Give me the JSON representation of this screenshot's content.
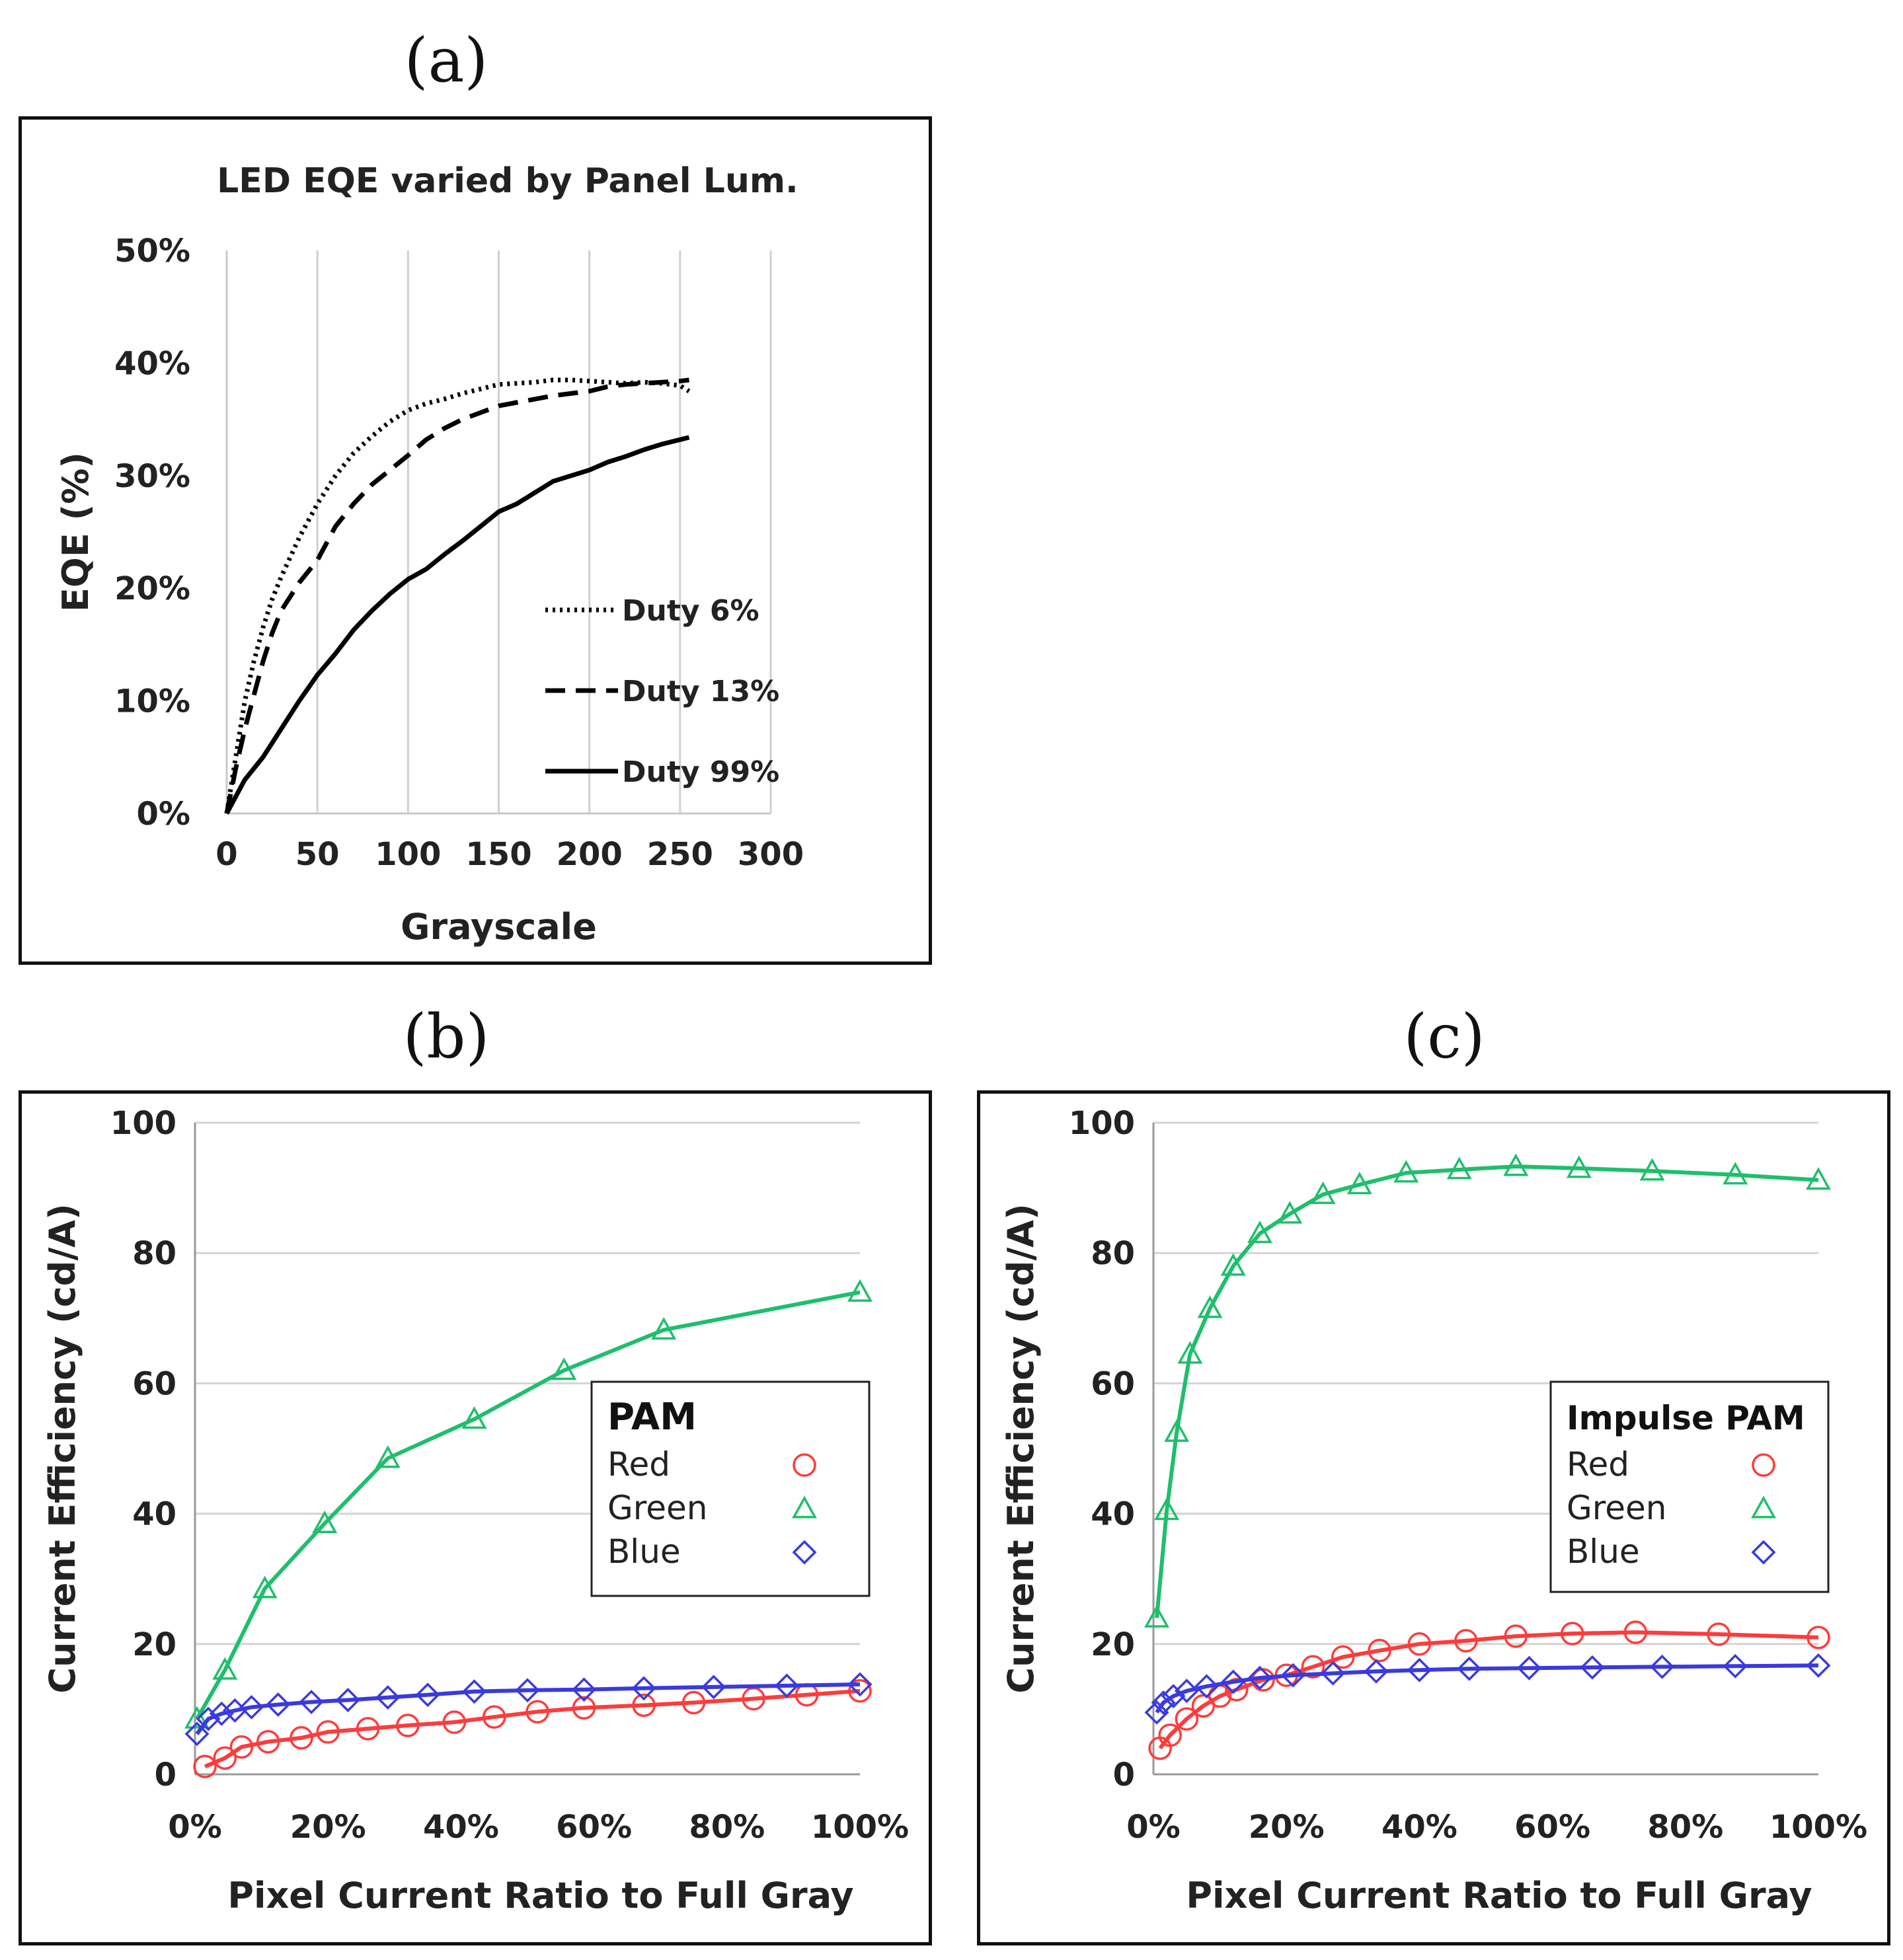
{
  "panels": {
    "a": "(a)",
    "b": "(b)",
    "c": "(c)"
  },
  "chart_data": [
    {
      "id": "a",
      "type": "line",
      "title": "LED EQE varied by Panel Lum.",
      "xlabel": "Grayscale",
      "ylabel": "EQE (%)",
      "xlim": [
        0,
        300
      ],
      "ylim": [
        0,
        50
      ],
      "xticks": [
        "0",
        "50",
        "100",
        "150",
        "200",
        "250",
        "300"
      ],
      "yticks": [
        "0%",
        "10%",
        "20%",
        "30%",
        "40%",
        "50%"
      ],
      "grid": "vertical",
      "legend_position": "bottom-right",
      "series": [
        {
          "name": "Duty 6%",
          "style": "dotted",
          "x": [
            0,
            5,
            10,
            15,
            20,
            25,
            30,
            40,
            50,
            60,
            70,
            80,
            90,
            100,
            110,
            120,
            130,
            140,
            150,
            160,
            170,
            180,
            190,
            200,
            210,
            220,
            230,
            240,
            250,
            255
          ],
          "y": [
            0,
            5,
            10,
            13.5,
            16.5,
            19,
            21,
            24.5,
            27.5,
            30,
            32,
            33.5,
            34.8,
            35.8,
            36.4,
            36.8,
            37.3,
            37.7,
            38.1,
            38.2,
            38.3,
            38.5,
            38.5,
            38.4,
            38.3,
            38.2,
            38.3,
            38.2,
            38.0,
            37.5
          ]
        },
        {
          "name": "Duty 13%",
          "style": "dashed",
          "x": [
            0,
            5,
            10,
            15,
            20,
            25,
            30,
            40,
            50,
            60,
            70,
            80,
            90,
            100,
            110,
            120,
            130,
            140,
            150,
            160,
            170,
            180,
            190,
            200,
            210,
            220,
            230,
            240,
            250,
            255
          ],
          "y": [
            0,
            4,
            7.5,
            10.5,
            13.5,
            16,
            18,
            20.5,
            22.5,
            25.5,
            27.5,
            29.2,
            30.5,
            31.8,
            33.2,
            34.2,
            35,
            35.6,
            36.2,
            36.5,
            36.8,
            37.1,
            37.3,
            37.5,
            37.9,
            38.1,
            38.2,
            38.3,
            38.4,
            38.5
          ]
        },
        {
          "name": "Duty 99%",
          "style": "solid",
          "x": [
            0,
            5,
            10,
            20,
            30,
            40,
            50,
            60,
            70,
            80,
            90,
            100,
            110,
            120,
            130,
            140,
            150,
            160,
            170,
            180,
            190,
            200,
            210,
            220,
            230,
            240,
            250,
            255
          ],
          "y": [
            0,
            1.5,
            3,
            5,
            7.5,
            10,
            12.3,
            14.2,
            16.3,
            18,
            19.5,
            20.8,
            21.7,
            23,
            24.2,
            25.5,
            26.8,
            27.5,
            28.5,
            29.5,
            30,
            30.5,
            31.2,
            31.7,
            32.3,
            32.8,
            33.2,
            33.4
          ]
        }
      ]
    },
    {
      "id": "b",
      "type": "line",
      "xlabel": "Pixel Current Ratio to Full Gray",
      "ylabel": "Current Efficiency (cd/A)",
      "xlim": [
        0,
        100
      ],
      "ylim": [
        0,
        100
      ],
      "xticks": [
        "0%",
        "20%",
        "40%",
        "60%",
        "80%",
        "100%"
      ],
      "yticks": [
        "0",
        "20",
        "40",
        "60",
        "80",
        "100"
      ],
      "grid": "horizontal",
      "legend_title": "PAM",
      "legend_position": "right",
      "series": [
        {
          "name": "Red",
          "color": "#ff3b3b",
          "marker": "circle",
          "x": [
            1.5,
            4.5,
            7,
            11,
            16,
            20,
            26,
            32,
            39,
            45,
            51.5,
            58.5,
            67.5,
            75,
            84,
            92,
            100
          ],
          "y": [
            1.2,
            2.5,
            4.2,
            5,
            5.6,
            6.5,
            7,
            7.5,
            8,
            8.8,
            9.6,
            10.2,
            10.6,
            11,
            11.6,
            12.2,
            12.8
          ]
        },
        {
          "name": "Green",
          "color": "#1fbf6b",
          "marker": "triangle",
          "x": [
            0.3,
            4.5,
            10.5,
            19.5,
            29,
            42,
            55.5,
            70.5,
            100
          ],
          "y": [
            8.5,
            16,
            28.5,
            38.5,
            48.5,
            54.5,
            62,
            68.2,
            74
          ]
        },
        {
          "name": "Blue",
          "color": "#3a3adf",
          "marker": "diamond",
          "x": [
            0.3,
            2,
            4,
            6,
            8.5,
            12.5,
            17.5,
            23,
            29,
            35,
            42,
            50,
            58.5,
            67.5,
            78,
            89,
            100
          ],
          "y": [
            6.2,
            8.5,
            9.3,
            9.8,
            10.3,
            10.7,
            11.1,
            11.4,
            11.8,
            12.2,
            12.7,
            12.9,
            13,
            13.2,
            13.4,
            13.6,
            13.8
          ]
        }
      ]
    },
    {
      "id": "c",
      "type": "line",
      "xlabel": "Pixel Current Ratio to Full Gray",
      "ylabel": "Current Efficiency (cd/A)",
      "xlim": [
        0,
        100
      ],
      "ylim": [
        0,
        100
      ],
      "xticks": [
        "0%",
        "20%",
        "40%",
        "60%",
        "80%",
        "100%"
      ],
      "yticks": [
        "0",
        "20",
        "40",
        "60",
        "80",
        "100"
      ],
      "grid": "horizontal",
      "legend_title": "Impulse PAM",
      "legend_position": "right",
      "series": [
        {
          "name": "Red",
          "color": "#ff3b3b",
          "marker": "circle",
          "x": [
            1,
            2.5,
            5,
            7.5,
            10,
            12.5,
            16.5,
            20,
            24,
            28.5,
            34,
            40,
            47,
            54.5,
            63,
            72.5,
            85,
            100
          ],
          "y": [
            4,
            6,
            8.5,
            10.5,
            12,
            13,
            14.5,
            15.2,
            16.5,
            18,
            19,
            20,
            20.5,
            21.2,
            21.6,
            21.8,
            21.5,
            21
          ]
        },
        {
          "name": "Green",
          "color": "#1fbf6b",
          "marker": "triangle",
          "x": [
            0.5,
            2,
            3.5,
            5.5,
            8.5,
            12,
            16,
            20.5,
            25.5,
            31,
            38,
            46,
            54.5,
            64,
            75,
            87.5,
            100
          ],
          "y": [
            24,
            40.5,
            52.5,
            64.5,
            71.5,
            78,
            83,
            86,
            89,
            90.5,
            92.3,
            92.8,
            93.3,
            93,
            92.6,
            92,
            91.2
          ]
        },
        {
          "name": "Blue",
          "color": "#3a3adf",
          "marker": "diamond",
          "x": [
            0.5,
            1.5,
            3,
            5,
            8,
            12,
            16,
            21,
            27,
            33.5,
            40,
            47.5,
            56.5,
            66,
            76.5,
            87.5,
            100
          ],
          "y": [
            9.5,
            11,
            12,
            12.8,
            13.5,
            14.2,
            14.8,
            15.2,
            15.5,
            15.8,
            16,
            16.2,
            16.3,
            16.4,
            16.5,
            16.6,
            16.7
          ]
        }
      ]
    }
  ]
}
